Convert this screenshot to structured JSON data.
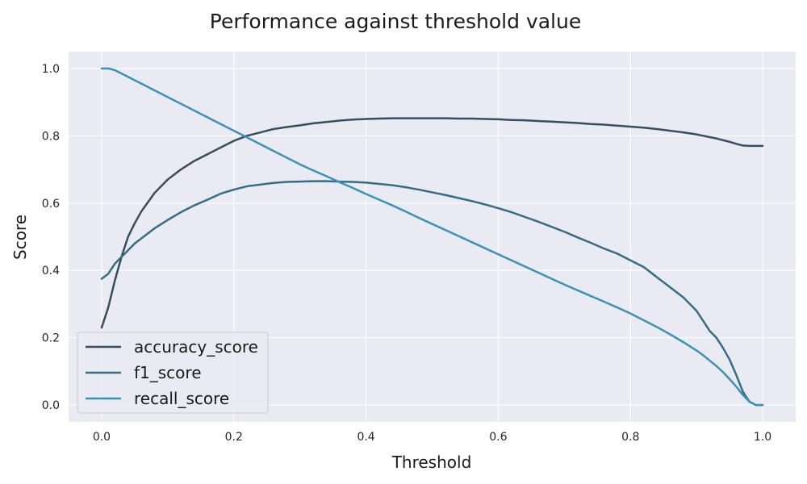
{
  "chart_data": {
    "type": "line",
    "title": "Performance against threshold value",
    "xlabel": "Threshold",
    "ylabel": "Score",
    "xlim": [
      -0.05,
      1.05
    ],
    "ylim": [
      -0.05,
      1.05
    ],
    "xticks": [
      0.0,
      0.2,
      0.4,
      0.6,
      0.8,
      1.0
    ],
    "yticks": [
      0.0,
      0.2,
      0.4,
      0.6,
      0.8,
      1.0
    ],
    "xtick_labels": [
      "0.0",
      "0.2",
      "0.4",
      "0.6",
      "0.8",
      "1.0"
    ],
    "ytick_labels": [
      "0.0",
      "0.2",
      "0.4",
      "0.6",
      "0.8",
      "1.0"
    ],
    "grid": true,
    "legend": "lower-left",
    "background": "#eaeaf2",
    "x": [
      0.0,
      0.01,
      0.02,
      0.03,
      0.04,
      0.05,
      0.06,
      0.08,
      0.1,
      0.12,
      0.14,
      0.16,
      0.18,
      0.2,
      0.22,
      0.24,
      0.26,
      0.28,
      0.3,
      0.32,
      0.34,
      0.36,
      0.38,
      0.4,
      0.42,
      0.44,
      0.46,
      0.48,
      0.5,
      0.52,
      0.54,
      0.56,
      0.58,
      0.6,
      0.62,
      0.64,
      0.66,
      0.68,
      0.7,
      0.72,
      0.74,
      0.76,
      0.78,
      0.8,
      0.82,
      0.84,
      0.86,
      0.88,
      0.9,
      0.91,
      0.92,
      0.93,
      0.94,
      0.95,
      0.96,
      0.97,
      0.98,
      0.99,
      1.0
    ],
    "series": [
      {
        "name": "accuracy_score",
        "color": "#354d5e",
        "values": [
          0.23,
          0.29,
          0.37,
          0.44,
          0.5,
          0.54,
          0.575,
          0.63,
          0.67,
          0.7,
          0.725,
          0.745,
          0.765,
          0.785,
          0.8,
          0.81,
          0.82,
          0.826,
          0.831,
          0.837,
          0.841,
          0.845,
          0.848,
          0.85,
          0.851,
          0.852,
          0.852,
          0.852,
          0.852,
          0.852,
          0.851,
          0.851,
          0.85,
          0.849,
          0.847,
          0.846,
          0.844,
          0.842,
          0.84,
          0.838,
          0.835,
          0.833,
          0.83,
          0.827,
          0.824,
          0.82,
          0.815,
          0.81,
          0.804,
          0.8,
          0.796,
          0.792,
          0.787,
          0.782,
          0.776,
          0.771,
          0.77,
          0.77,
          0.77
        ]
      },
      {
        "name": "f1_score",
        "color": "#356d85",
        "values": [
          0.375,
          0.39,
          0.42,
          0.44,
          0.46,
          0.48,
          0.495,
          0.525,
          0.55,
          0.573,
          0.593,
          0.61,
          0.628,
          0.64,
          0.65,
          0.655,
          0.66,
          0.663,
          0.664,
          0.665,
          0.665,
          0.664,
          0.663,
          0.661,
          0.657,
          0.653,
          0.647,
          0.64,
          0.632,
          0.624,
          0.615,
          0.606,
          0.596,
          0.585,
          0.573,
          0.559,
          0.545,
          0.53,
          0.515,
          0.498,
          0.482,
          0.465,
          0.45,
          0.43,
          0.41,
          0.38,
          0.35,
          0.32,
          0.28,
          0.25,
          0.22,
          0.2,
          0.17,
          0.135,
          0.09,
          0.04,
          0.01,
          0.0,
          0.0
        ]
      },
      {
        "name": "recall_score",
        "color": "#3b91b8",
        "values": [
          1.0,
          1.0,
          0.995,
          0.985,
          0.975,
          0.965,
          0.955,
          0.935,
          0.915,
          0.895,
          0.875,
          0.855,
          0.835,
          0.815,
          0.795,
          0.775,
          0.755,
          0.735,
          0.715,
          0.697,
          0.68,
          0.662,
          0.645,
          0.627,
          0.61,
          0.593,
          0.575,
          0.556,
          0.538,
          0.52,
          0.502,
          0.484,
          0.466,
          0.448,
          0.43,
          0.412,
          0.394,
          0.376,
          0.358,
          0.341,
          0.324,
          0.307,
          0.29,
          0.272,
          0.252,
          0.232,
          0.21,
          0.187,
          0.162,
          0.148,
          0.132,
          0.116,
          0.098,
          0.077,
          0.055,
          0.03,
          0.01,
          0.0,
          0.0
        ]
      }
    ]
  }
}
